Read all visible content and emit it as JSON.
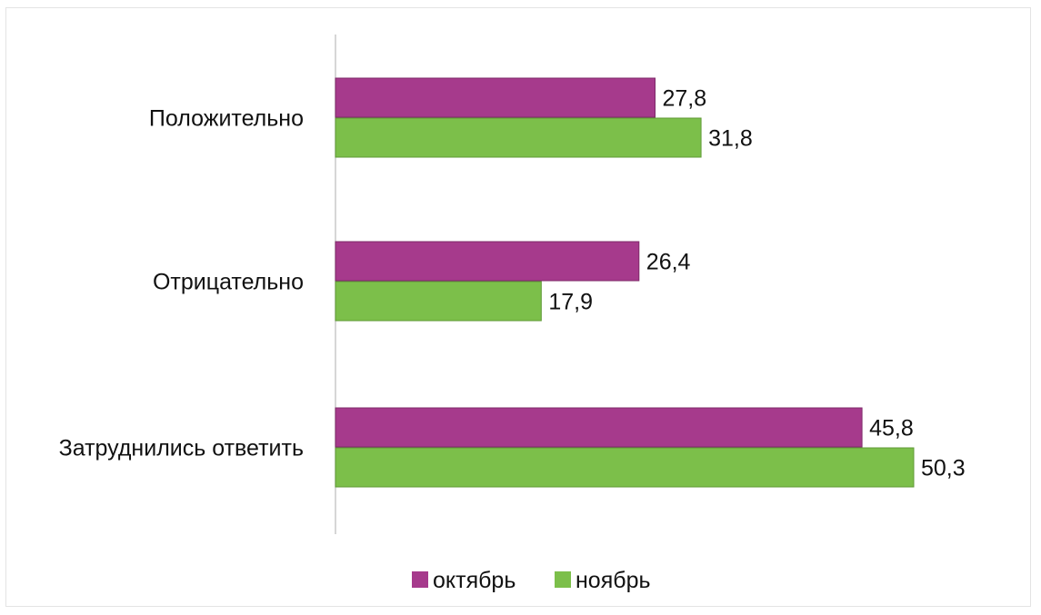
{
  "chart_data": {
    "type": "bar",
    "orientation": "horizontal",
    "categories": [
      "Положительно",
      "Отрицательно",
      "Затруднились ответить"
    ],
    "series": [
      {
        "name": "октябрь",
        "color": "#a63a8c",
        "values": [
          27.8,
          26.4,
          45.8
        ]
      },
      {
        "name": "ноябрь",
        "color": "#7cbf4a",
        "values": [
          31.8,
          17.9,
          50.3
        ]
      }
    ],
    "value_labels": [
      [
        "27,8",
        "26,4",
        "45,8"
      ],
      [
        "31,8",
        "17,9",
        "50,3"
      ]
    ],
    "xlim": [
      0,
      50.3
    ],
    "grid": false,
    "legend_position": "bottom"
  }
}
